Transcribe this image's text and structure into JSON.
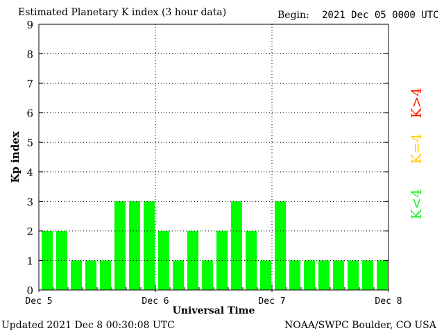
{
  "header": {
    "title": "Estimated Planetary K index (3 hour data)",
    "begin_label": "Begin:",
    "begin_value": "2021 Dec 05 0000 UTC"
  },
  "footer": {
    "updated": "Updated 2021 Dec  8 00:30:08 UTC",
    "source": "NOAA/SWPC Boulder, CO USA"
  },
  "legend": {
    "below": "K<4",
    "equal": "K=4",
    "above": "K>4",
    "colors": {
      "below": "#22ee22",
      "equal": "#ffcc00",
      "above": "#ff2200"
    }
  },
  "chart_data": {
    "type": "bar",
    "title": "Estimated Planetary K index (3 hour data)",
    "xlabel": "Universal Time",
    "ylabel": "Kp index",
    "ylim": [
      0,
      9
    ],
    "yticks": [
      "0",
      "1",
      "2",
      "3",
      "4",
      "5",
      "6",
      "7",
      "8",
      "9"
    ],
    "xticks": [
      "Dec 5",
      "Dec 6",
      "Dec 7",
      "Dec 8"
    ],
    "grid": true,
    "bar_color": "#00ff00",
    "values": [
      2,
      2,
      1,
      1,
      1,
      3,
      3,
      3,
      2,
      1,
      2,
      1,
      2,
      3,
      2,
      1,
      3,
      1,
      1,
      1,
      1,
      1,
      1,
      1
    ]
  }
}
